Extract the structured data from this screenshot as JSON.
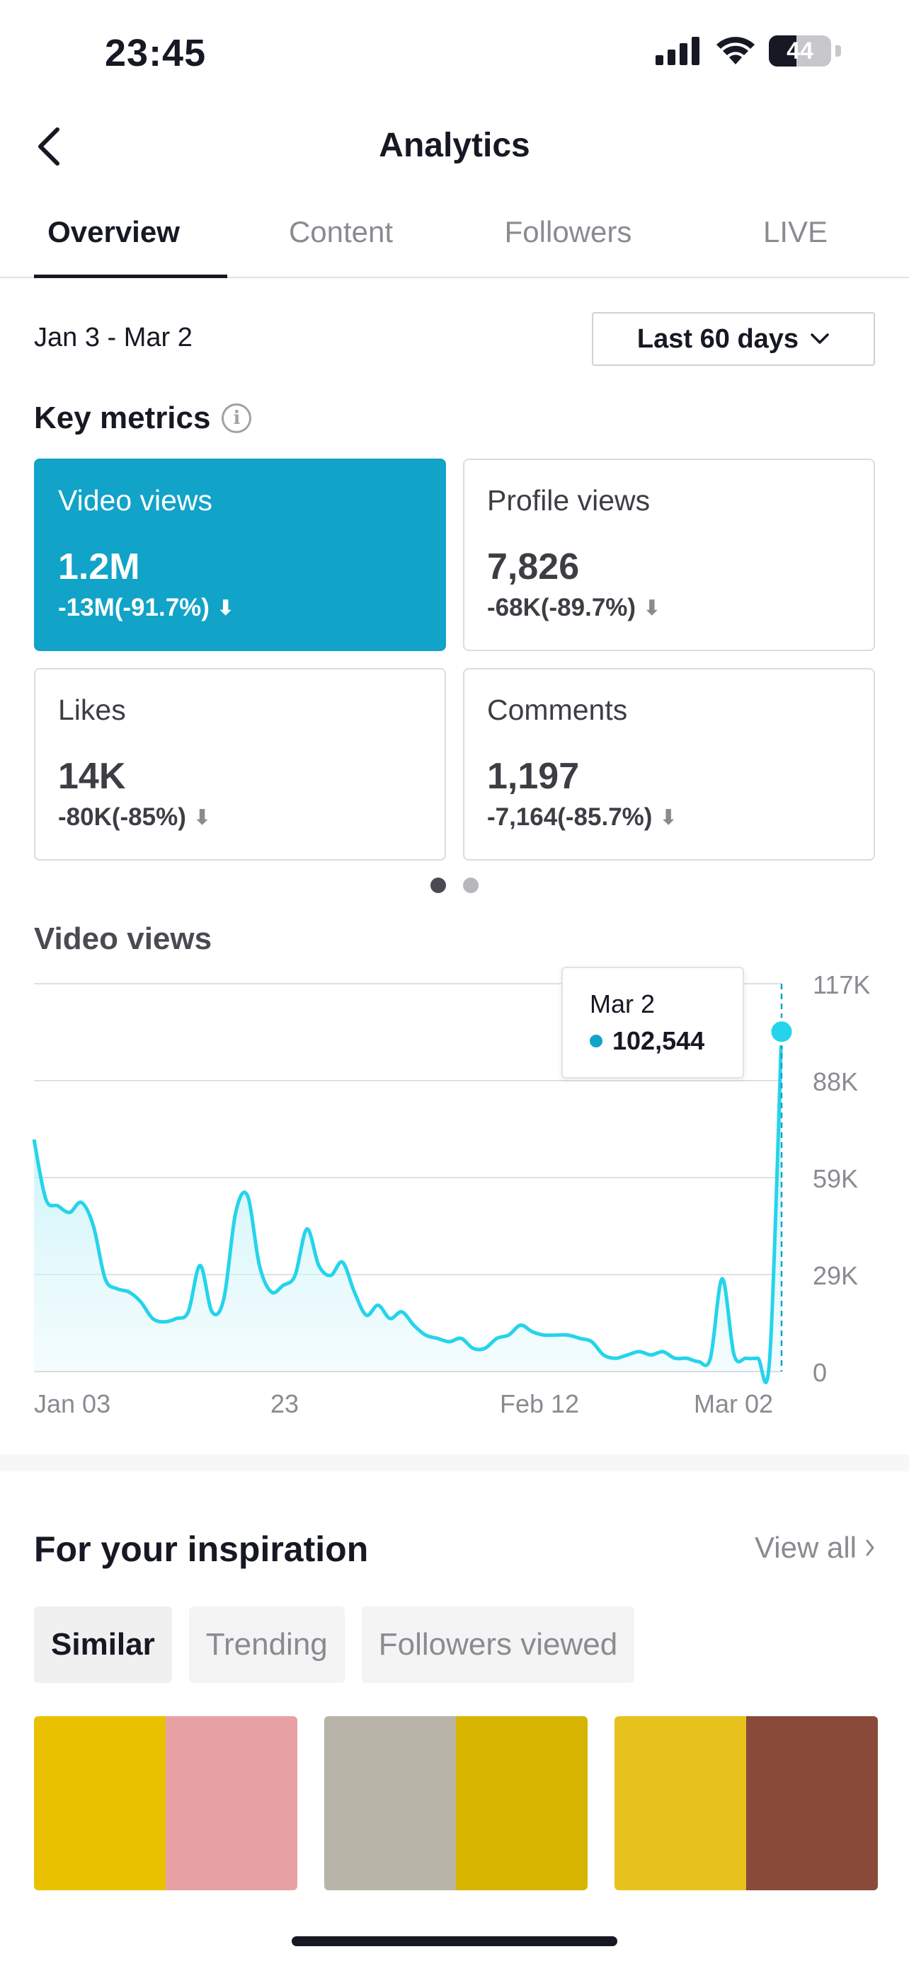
{
  "status_bar": {
    "time": "23:45",
    "battery": "44",
    "battery_level": 0.44
  },
  "header": {
    "title": "Analytics"
  },
  "tabs": [
    {
      "label": "Overview",
      "active": true
    },
    {
      "label": "Content",
      "active": false
    },
    {
      "label": "Followers",
      "active": false
    },
    {
      "label": "LIVE",
      "active": false
    }
  ],
  "date_range": "Jan 3 - Mar 2",
  "period_selector": {
    "label": "Last 60 days"
  },
  "key_metrics": {
    "title": "Key metrics",
    "cards": [
      {
        "label": "Video views",
        "value": "1.2M",
        "change": "-13M(-91.7%)",
        "active": true
      },
      {
        "label": "Profile views",
        "value": "7,826",
        "change": "-68K(-89.7%)",
        "active": false
      },
      {
        "label": "Likes",
        "value": "14K",
        "change": "-80K(-85%)",
        "active": false
      },
      {
        "label": "Comments",
        "value": "1,197",
        "change": "-7,164(-85.7%)",
        "active": false
      }
    ],
    "page_index": 0,
    "page_count": 2
  },
  "chart_data": {
    "type": "area",
    "title": "Video views",
    "x_tick_labels": [
      "Jan 03",
      "23",
      "Feb 12",
      "Mar 02"
    ],
    "y_tick_labels": [
      "117K",
      "88K",
      "59K",
      "29K",
      "0"
    ],
    "ylim": [
      0,
      117000
    ],
    "grid": true,
    "series_color": "#25d4ea",
    "values": [
      70000,
      52000,
      50000,
      48000,
      51000,
      44000,
      28000,
      25000,
      24000,
      21000,
      16000,
      15000,
      16000,
      18000,
      32000,
      18000,
      22000,
      48000,
      53000,
      32000,
      24000,
      26000,
      29000,
      43000,
      32000,
      29000,
      33000,
      24000,
      17000,
      20000,
      16000,
      18000,
      14000,
      11000,
      10000,
      9000,
      10000,
      7000,
      7000,
      10000,
      11000,
      14000,
      12000,
      11000,
      11000,
      11000,
      10000,
      9000,
      5000,
      4000,
      5000,
      6000,
      5000,
      6000,
      4000,
      4000,
      3000,
      4000,
      28000,
      5000,
      4000,
      4000,
      4000,
      102544
    ],
    "tooltip": {
      "date": "Mar 2",
      "value": "102,544"
    }
  },
  "inspiration": {
    "title": "For your inspiration",
    "view_all": "View all",
    "chips": [
      {
        "label": "Similar",
        "active": true
      },
      {
        "label": "Trending",
        "active": false
      },
      {
        "label": "Followers viewed",
        "active": false
      }
    ],
    "thumbnails": [
      {
        "colors": [
          "#e9c100",
          "#e8a1a3"
        ]
      },
      {
        "colors": [
          "#b8b4a8",
          "#d7b400"
        ]
      },
      {
        "colors": [
          "#e7c21c",
          "#8a4a3a"
        ]
      }
    ]
  }
}
